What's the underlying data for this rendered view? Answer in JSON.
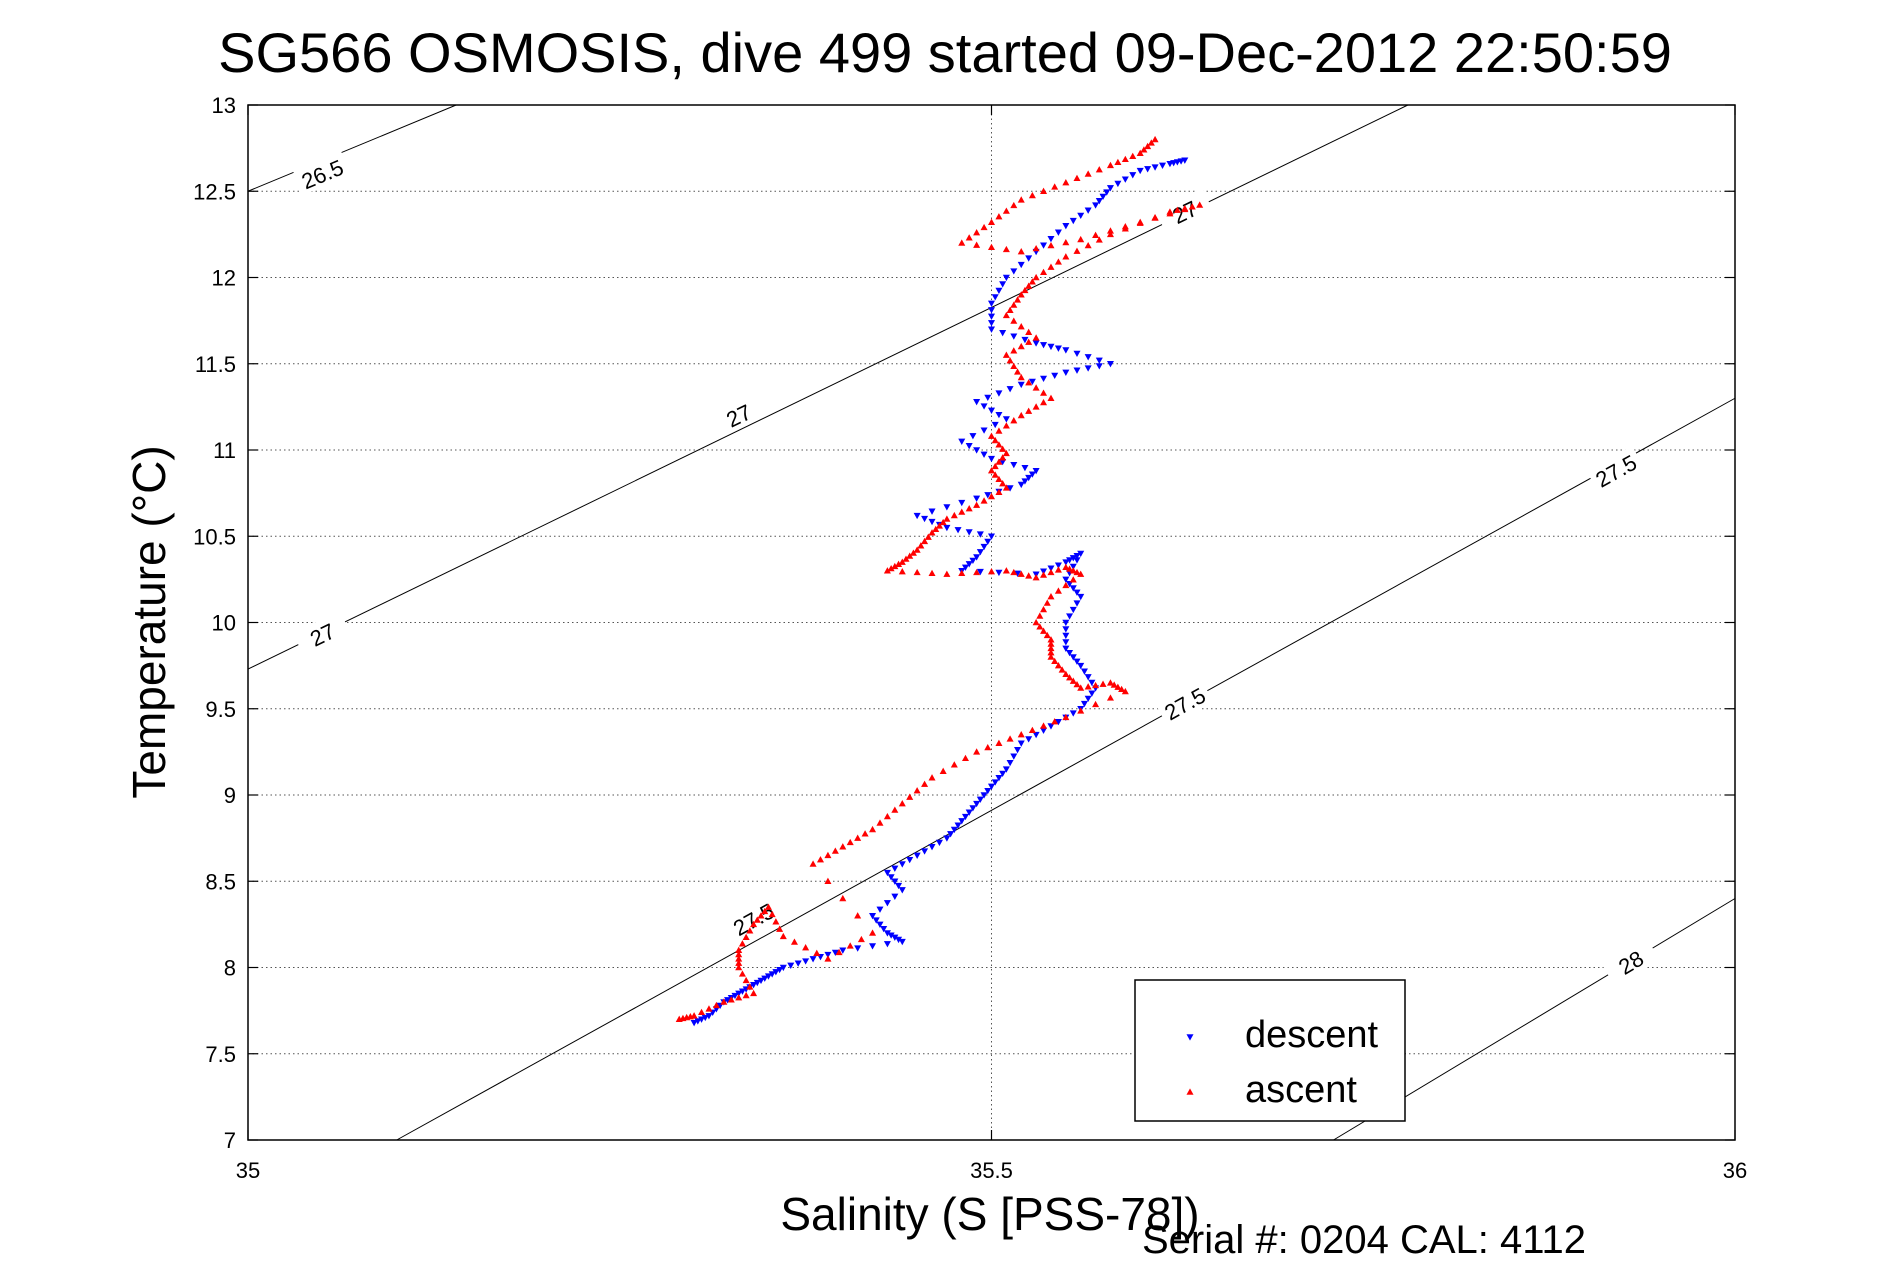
{
  "chart_data": {
    "type": "scatter",
    "title": "SG566 OSMOSIS, dive 499 started 09-Dec-2012 22:50:59",
    "xlabel": "Salinity (S [PSS-78])",
    "ylabel": "Temperature (°C)",
    "footer": "Serial #: 0204  CAL: 4112",
    "xlim": [
      35,
      36
    ],
    "ylim": [
      7,
      13
    ],
    "xticks": [
      35,
      35.5,
      36
    ],
    "xtick_labels": [
      "35",
      "35.5",
      "36"
    ],
    "yticks": [
      7,
      7.5,
      8,
      8.5,
      9,
      9.5,
      10,
      10.5,
      11,
      11.5,
      12,
      12.5,
      13
    ],
    "ytick_labels": [
      "7",
      "7.5",
      "8",
      "8.5",
      "9",
      "9.5",
      "10",
      "10.5",
      "11",
      "11.5",
      "12",
      "12.5",
      "13"
    ],
    "grid": true,
    "legend_position": "bottom-right",
    "series": [
      {
        "name": "descent",
        "color": "#0000ff",
        "marker": "triangle-down",
        "points": [
          [
            35.63,
            12.68
          ],
          [
            35.62,
            12.66
          ],
          [
            35.6,
            12.62
          ],
          [
            35.58,
            12.52
          ],
          [
            35.57,
            12.42
          ],
          [
            35.55,
            12.3
          ],
          [
            35.53,
            12.15
          ],
          [
            35.51,
            12.0
          ],
          [
            35.5,
            11.85
          ],
          [
            35.5,
            11.7
          ],
          [
            35.53,
            11.62
          ],
          [
            35.55,
            11.58
          ],
          [
            35.58,
            11.5
          ],
          [
            35.55,
            11.45
          ],
          [
            35.52,
            11.38
          ],
          [
            35.49,
            11.28
          ],
          [
            35.51,
            11.18
          ],
          [
            35.48,
            11.05
          ],
          [
            35.5,
            10.95
          ],
          [
            35.53,
            10.88
          ],
          [
            35.52,
            10.8
          ],
          [
            35.49,
            10.72
          ],
          [
            35.45,
            10.62
          ],
          [
            35.47,
            10.55
          ],
          [
            35.5,
            10.5
          ],
          [
            35.49,
            10.38
          ],
          [
            35.48,
            10.3
          ],
          [
            35.53,
            10.28
          ],
          [
            35.55,
            10.35
          ],
          [
            35.56,
            10.4
          ],
          [
            35.55,
            10.25
          ],
          [
            35.56,
            10.15
          ],
          [
            35.55,
            10.0
          ],
          [
            35.55,
            9.85
          ],
          [
            35.56,
            9.75
          ],
          [
            35.57,
            9.62
          ],
          [
            35.56,
            9.5
          ],
          [
            35.54,
            9.4
          ],
          [
            35.52,
            9.3
          ],
          [
            35.51,
            9.15
          ],
          [
            35.5,
            9.05
          ],
          [
            35.49,
            8.95
          ],
          [
            35.48,
            8.85
          ],
          [
            35.47,
            8.75
          ],
          [
            35.45,
            8.65
          ],
          [
            35.43,
            8.55
          ],
          [
            35.44,
            8.45
          ],
          [
            35.42,
            8.3
          ],
          [
            35.43,
            8.2
          ],
          [
            35.44,
            8.15
          ],
          [
            35.4,
            8.1
          ],
          [
            35.38,
            8.05
          ],
          [
            35.36,
            8.0
          ],
          [
            35.35,
            7.95
          ],
          [
            35.34,
            7.9
          ],
          [
            35.33,
            7.85
          ],
          [
            35.32,
            7.8
          ],
          [
            35.31,
            7.72
          ],
          [
            35.3,
            7.68
          ]
        ]
      },
      {
        "name": "ascent",
        "color": "#ff0000",
        "marker": "triangle-up",
        "points": [
          [
            35.61,
            12.8
          ],
          [
            35.6,
            12.72
          ],
          [
            35.58,
            12.65
          ],
          [
            35.55,
            12.55
          ],
          [
            35.52,
            12.45
          ],
          [
            35.5,
            12.32
          ],
          [
            35.48,
            12.2
          ],
          [
            35.52,
            12.15
          ],
          [
            35.56,
            12.22
          ],
          [
            35.6,
            12.32
          ],
          [
            35.64,
            12.42
          ],
          [
            35.62,
            12.38
          ],
          [
            35.58,
            12.25
          ],
          [
            35.55,
            12.12
          ],
          [
            35.53,
            12.0
          ],
          [
            35.52,
            11.9
          ],
          [
            35.51,
            11.78
          ],
          [
            35.53,
            11.65
          ],
          [
            35.51,
            11.55
          ],
          [
            35.52,
            11.42
          ],
          [
            35.54,
            11.3
          ],
          [
            35.52,
            11.2
          ],
          [
            35.5,
            11.08
          ],
          [
            35.51,
            10.98
          ],
          [
            35.5,
            10.88
          ],
          [
            35.51,
            10.78
          ],
          [
            35.49,
            10.68
          ],
          [
            35.47,
            10.6
          ],
          [
            35.46,
            10.52
          ],
          [
            35.45,
            10.42
          ],
          [
            35.44,
            10.35
          ],
          [
            35.43,
            10.3
          ],
          [
            35.47,
            10.28
          ],
          [
            35.51,
            10.3
          ],
          [
            35.53,
            10.26
          ],
          [
            35.55,
            10.32
          ],
          [
            35.56,
            10.28
          ],
          [
            35.54,
            10.15
          ],
          [
            35.53,
            10.0
          ],
          [
            35.54,
            9.9
          ],
          [
            35.54,
            9.8
          ],
          [
            35.55,
            9.7
          ],
          [
            35.56,
            9.62
          ],
          [
            35.58,
            9.65
          ],
          [
            35.59,
            9.6
          ],
          [
            35.55,
            9.45
          ],
          [
            35.52,
            9.35
          ],
          [
            35.49,
            9.25
          ],
          [
            35.46,
            9.1
          ],
          [
            35.44,
            8.95
          ],
          [
            35.42,
            8.8
          ],
          [
            35.4,
            8.7
          ],
          [
            35.38,
            8.6
          ],
          [
            35.42,
            8.2
          ],
          [
            35.39,
            8.05
          ],
          [
            35.36,
            8.18
          ],
          [
            35.35,
            8.35
          ],
          [
            35.34,
            8.25
          ],
          [
            35.33,
            8.1
          ],
          [
            35.33,
            8.0
          ],
          [
            35.34,
            7.85
          ],
          [
            35.32,
            7.8
          ],
          [
            35.3,
            7.72
          ],
          [
            35.29,
            7.7
          ]
        ]
      }
    ],
    "contours": [
      {
        "label": "26.5",
        "line": [
          [
            35.0,
            12.5
          ],
          [
            35.14,
            13.0
          ]
        ],
        "label_at": [
          35.05,
          12.6
        ]
      },
      {
        "label": "27",
        "line": [
          [
            35.0,
            9.73
          ],
          [
            35.78,
            13.0
          ]
        ],
        "label_at": [
          35.05,
          9.93
        ]
      },
      {
        "label": "27.5",
        "line": [
          [
            35.1,
            7.0
          ],
          [
            36.0,
            11.3
          ]
        ],
        "label_at": [
          35.34,
          8.28
        ]
      },
      {
        "label": "28",
        "line": [
          [
            35.73,
            7.0
          ],
          [
            36.0,
            8.4
          ]
        ],
        "label_at": [
          35.93,
          8.03
        ]
      }
    ],
    "contour_labels": [
      {
        "text": "26.5",
        "at": [
          35.05,
          12.6
        ]
      },
      {
        "text": "27",
        "at": [
          35.05,
          9.93
        ]
      },
      {
        "text": "27",
        "at": [
          35.33,
          11.2
        ]
      },
      {
        "text": "27",
        "at": [
          35.63,
          12.38
        ]
      },
      {
        "text": "27.5",
        "at": [
          35.34,
          8.28
        ]
      },
      {
        "text": "27.5",
        "at": [
          35.63,
          9.53
        ]
      },
      {
        "text": "27.5",
        "at": [
          35.92,
          10.88
        ]
      },
      {
        "text": "28",
        "at": [
          35.93,
          8.03
        ]
      }
    ]
  }
}
